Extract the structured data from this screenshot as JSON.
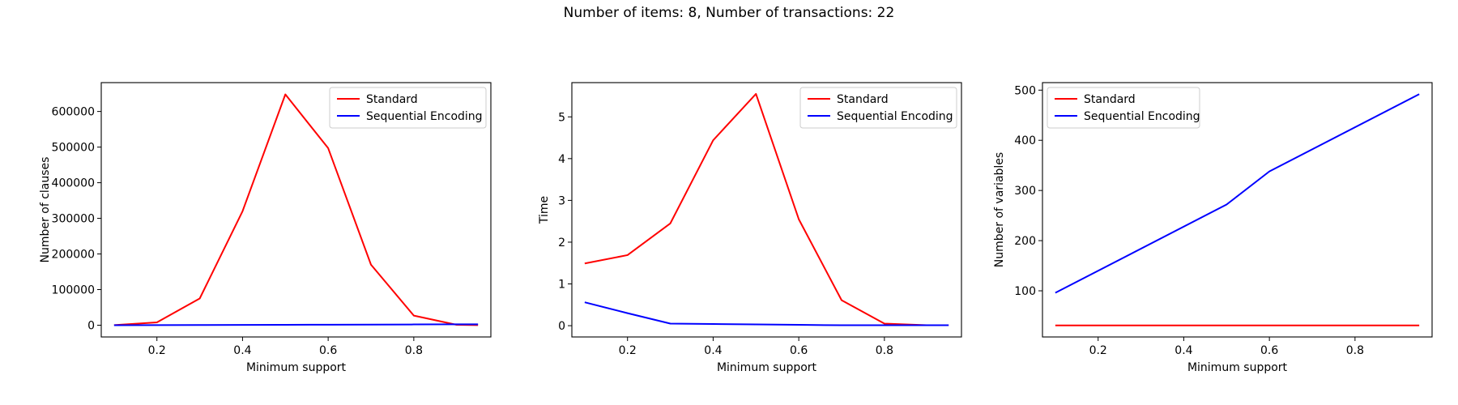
{
  "figure": {
    "suptitle": "Number of items: 8, Number of transactions: 22"
  },
  "chart_data": [
    {
      "type": "line",
      "xlabel": "Minimum support",
      "ylabel": "Number of clauses",
      "xlim": [
        0.07,
        0.98
      ],
      "ylim": [
        -33000,
        681000
      ],
      "xticks": [
        0.2,
        0.4,
        0.6,
        0.8
      ],
      "xtick_labels": [
        "0.2",
        "0.4",
        "0.6",
        "0.8"
      ],
      "yticks": [
        0,
        100000,
        200000,
        300000,
        400000,
        500000,
        600000
      ],
      "ytick_labels": [
        "0",
        "100000",
        "200000",
        "300000",
        "400000",
        "500000",
        "600000"
      ],
      "grid": false,
      "legend_position": "top-right",
      "series": [
        {
          "name": "Standard",
          "color": "#ff0000",
          "x": [
            0.1,
            0.2,
            0.3,
            0.4,
            0.5,
            0.6,
            0.7,
            0.8,
            0.9,
            0.95
          ],
          "y": [
            200,
            8000,
            75000,
            320000,
            648000,
            497000,
            170000,
            27000,
            1200,
            300
          ]
        },
        {
          "name": "Sequential Encoding",
          "color": "#0000ff",
          "x": [
            0.1,
            0.2,
            0.3,
            0.4,
            0.5,
            0.6,
            0.7,
            0.8,
            0.9,
            0.95
          ],
          "y": [
            100,
            300,
            600,
            900,
            1200,
            1500,
            1800,
            2100,
            2400,
            2600
          ]
        }
      ]
    },
    {
      "type": "line",
      "xlabel": "Minimum support",
      "ylabel": "Time",
      "xlim": [
        0.07,
        0.98
      ],
      "ylim": [
        -0.27,
        5.82
      ],
      "xticks": [
        0.2,
        0.4,
        0.6,
        0.8
      ],
      "xtick_labels": [
        "0.2",
        "0.4",
        "0.6",
        "0.8"
      ],
      "yticks": [
        0,
        1,
        2,
        3,
        4,
        5
      ],
      "ytick_labels": [
        "0",
        "1",
        "2",
        "3",
        "4",
        "5"
      ],
      "grid": false,
      "legend_position": "top-right",
      "series": [
        {
          "name": "Standard",
          "color": "#ff0000",
          "x": [
            0.1,
            0.2,
            0.3,
            0.4,
            0.5,
            0.6,
            0.7,
            0.8,
            0.9,
            0.95
          ],
          "y": [
            1.49,
            1.69,
            2.45,
            4.44,
            5.55,
            2.55,
            0.61,
            0.05,
            0.01,
            0.01
          ]
        },
        {
          "name": "Sequential Encoding",
          "color": "#0000ff",
          "x": [
            0.1,
            0.2,
            0.3,
            0.4,
            0.5,
            0.6,
            0.7,
            0.8,
            0.9,
            0.95
          ],
          "y": [
            0.56,
            0.3,
            0.05,
            0.04,
            0.03,
            0.02,
            0.01,
            0.01,
            0.01,
            0.01
          ]
        }
      ]
    },
    {
      "type": "line",
      "xlabel": "Minimum support",
      "ylabel": "Number of variables",
      "xlim": [
        0.07,
        0.98
      ],
      "ylim": [
        8,
        515
      ],
      "xticks": [
        0.2,
        0.4,
        0.6,
        0.8
      ],
      "xtick_labels": [
        "0.2",
        "0.4",
        "0.6",
        "0.8"
      ],
      "yticks": [
        100,
        200,
        300,
        400,
        500
      ],
      "ytick_labels": [
        "100",
        "200",
        "300",
        "400",
        "500"
      ],
      "grid": false,
      "legend_position": "top-left",
      "series": [
        {
          "name": "Standard",
          "color": "#ff0000",
          "x": [
            0.1,
            0.2,
            0.3,
            0.4,
            0.5,
            0.6,
            0.7,
            0.8,
            0.9,
            0.95
          ],
          "y": [
            31,
            31,
            31,
            31,
            31,
            31,
            31,
            31,
            31,
            31
          ]
        },
        {
          "name": "Sequential Encoding",
          "color": "#0000ff",
          "x": [
            0.1,
            0.5,
            0.6,
            0.95
          ],
          "y": [
            96,
            272,
            338,
            492
          ]
        }
      ]
    }
  ]
}
